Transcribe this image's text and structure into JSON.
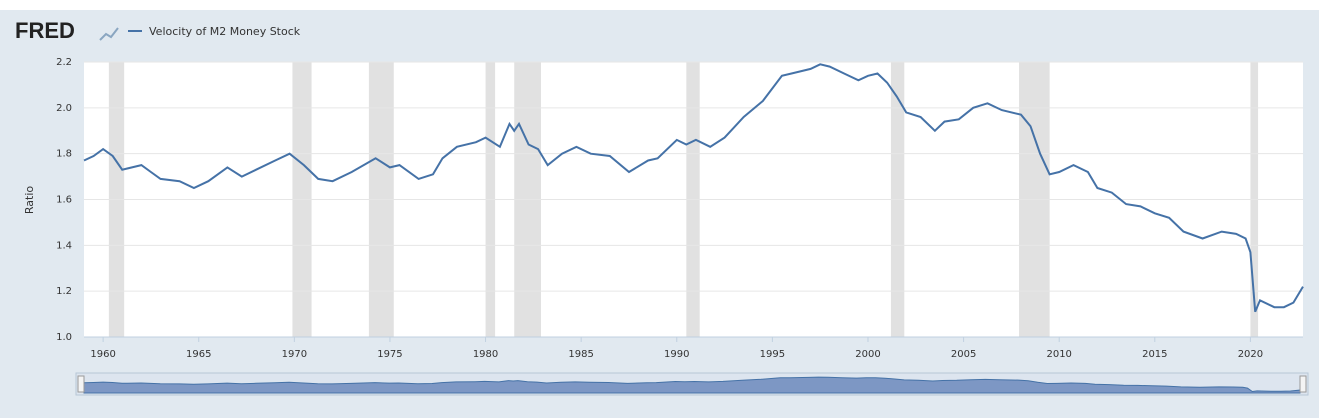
{
  "chart_data": {
    "type": "line",
    "brand": "FRED",
    "y_label": "Ratio",
    "x": [
      1959.0,
      1959.5,
      1960.0,
      1960.5,
      1961.0,
      1962.0,
      1962.5,
      1963.0,
      1964.0,
      1964.75,
      1965.5,
      1966.5,
      1967.25,
      1968.0,
      1969.0,
      1969.75,
      1970.5,
      1971.25,
      1972.0,
      1973.0,
      1974.25,
      1975.0,
      1975.5,
      1976.5,
      1977.25,
      1977.75,
      1978.5,
      1979.5,
      1980.0,
      1980.75,
      1981.25,
      1981.5,
      1981.75,
      1982.25,
      1982.75,
      1983.25,
      1984.0,
      1984.75,
      1985.5,
      1986.5,
      1987.5,
      1988.5,
      1989.0,
      1990.0,
      1990.5,
      1991.0,
      1991.75,
      1992.5,
      1993.5,
      1994.5,
      1995.5,
      1996.0,
      1997.0,
      1997.5,
      1998.0,
      1998.75,
      1999.5,
      2000.0,
      2000.5,
      2001.0,
      2001.5,
      2002.0,
      2002.75,
      2003.5,
      2004.0,
      2004.75,
      2005.5,
      2006.25,
      2007.0,
      2008.0,
      2008.5,
      2009.0,
      2009.5,
      2010.0,
      2010.75,
      2011.5,
      2012.0,
      2012.75,
      2013.5,
      2014.25,
      2015.0,
      2015.75,
      2016.5,
      2017.5,
      2018.5,
      2019.25,
      2019.75,
      2020.0,
      2020.25,
      2020.5,
      2021.25,
      2021.75,
      2022.25,
      2022.75
    ],
    "series": [
      {
        "name": "Velocity of M2 Money Stock",
        "color": "#4572a7",
        "values": [
          1.77,
          1.79,
          1.82,
          1.79,
          1.73,
          1.75,
          1.72,
          1.69,
          1.68,
          1.65,
          1.68,
          1.74,
          1.7,
          1.73,
          1.77,
          1.8,
          1.75,
          1.69,
          1.68,
          1.72,
          1.78,
          1.74,
          1.75,
          1.69,
          1.71,
          1.78,
          1.83,
          1.85,
          1.87,
          1.83,
          1.93,
          1.9,
          1.93,
          1.84,
          1.82,
          1.75,
          1.8,
          1.83,
          1.8,
          1.79,
          1.72,
          1.77,
          1.78,
          1.86,
          1.84,
          1.86,
          1.83,
          1.87,
          1.96,
          2.03,
          2.14,
          2.15,
          2.17,
          2.19,
          2.18,
          2.15,
          2.12,
          2.14,
          2.15,
          2.11,
          2.05,
          1.98,
          1.96,
          1.9,
          1.94,
          1.95,
          2.0,
          2.02,
          1.99,
          1.97,
          1.92,
          1.8,
          1.71,
          1.72,
          1.75,
          1.72,
          1.65,
          1.63,
          1.58,
          1.57,
          1.54,
          1.52,
          1.46,
          1.43,
          1.46,
          1.45,
          1.43,
          1.37,
          1.11,
          1.16,
          1.13,
          1.13,
          1.15,
          1.22
        ]
      }
    ],
    "recessions": [
      [
        1960.3,
        1961.1
      ],
      [
        1969.9,
        1970.9
      ],
      [
        1973.9,
        1975.2
      ],
      [
        1980.0,
        1980.5
      ],
      [
        1981.5,
        1982.9
      ],
      [
        1990.5,
        1991.2
      ],
      [
        2001.2,
        2001.9
      ],
      [
        2007.9,
        2009.5
      ],
      [
        2020.0,
        2020.4
      ]
    ],
    "recession_color": "#e1e1e1",
    "xlim": [
      1959,
      2022.75
    ],
    "xticks": [
      1960,
      1965,
      1970,
      1975,
      1980,
      1985,
      1990,
      1995,
      2000,
      2005,
      2010,
      2015,
      2020
    ],
    "ylim": [
      1.0,
      2.2
    ],
    "yticks": [
      {
        "value": 1.0,
        "label": "1.0"
      },
      1.2,
      1.4,
      1.6,
      1.8,
      {
        "value": 2.0,
        "label": "2.0"
      },
      2.2
    ],
    "grid": true
  }
}
